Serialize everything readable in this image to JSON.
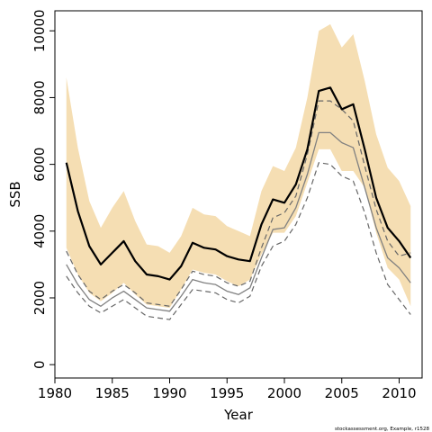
{
  "chart_data": {
    "type": "line",
    "xlabel": "Year",
    "ylabel": "SSB",
    "xlim": [
      1980,
      2012
    ],
    "ylim": [
      -400,
      10600
    ],
    "x_ticks": [
      1980,
      1985,
      1990,
      1995,
      2000,
      2005,
      2010
    ],
    "y_ticks": [
      0,
      2000,
      4000,
      6000,
      8000,
      10000
    ],
    "grid": false,
    "legend": "none",
    "footnote": "stockassessment.org, Example, r1528",
    "x": [
      1981,
      1982,
      1983,
      1984,
      1985,
      1986,
      1987,
      1988,
      1989,
      1990,
      1991,
      1992,
      1993,
      1994,
      1995,
      1996,
      1997,
      1998,
      1999,
      2000,
      2001,
      2002,
      2003,
      2004,
      2005,
      2006,
      2007,
      2008,
      2009,
      2010,
      2011
    ],
    "series": [
      {
        "style": "shaded-band",
        "color": "#f5deb3",
        "upper": [
          8600,
          6500,
          4900,
          4100,
          4700,
          5200,
          4300,
          3600,
          3550,
          3350,
          3850,
          4700,
          4500,
          4450,
          4150,
          4000,
          3850,
          5200,
          5950,
          5800,
          6500,
          8000,
          10000,
          10200,
          9500,
          9900,
          8500,
          6900,
          5900,
          5500,
          4750
        ],
        "lower": [
          3500,
          2700,
          2150,
          1900,
          2150,
          2450,
          2100,
          1800,
          1750,
          1700,
          2250,
          2850,
          2750,
          2700,
          2500,
          2350,
          2550,
          3300,
          3950,
          3950,
          4450,
          5450,
          6450,
          6450,
          5800,
          5800,
          5300,
          3950,
          2900,
          2550,
          1750
        ]
      },
      {
        "style": "thick-solid",
        "color": "#000000",
        "values": [
          6050,
          4600,
          3550,
          3000,
          3350,
          3700,
          3100,
          2700,
          2650,
          2550,
          2950,
          3650,
          3500,
          3450,
          3250,
          3150,
          3100,
          4200,
          4950,
          4850,
          5400,
          6450,
          8200,
          8300,
          7650,
          7800,
          6450,
          5000,
          4100,
          3700,
          3200
        ]
      },
      {
        "style": "grey-solid",
        "color": "#808080",
        "values": [
          3000,
          2400,
          1950,
          1750,
          2000,
          2200,
          1950,
          1700,
          1650,
          1600,
          2050,
          2550,
          2450,
          2400,
          2200,
          2100,
          2300,
          3200,
          4050,
          4100,
          4700,
          5700,
          6950,
          6950,
          6650,
          6500,
          5300,
          4100,
          3200,
          2900,
          2450
        ]
      },
      {
        "style": "dashed-upper",
        "color": "#666666",
        "values": [
          3400,
          2700,
          2200,
          1950,
          2200,
          2400,
          2150,
          1850,
          1800,
          1750,
          2250,
          2800,
          2700,
          2650,
          2450,
          2350,
          2500,
          3500,
          4400,
          4550,
          5050,
          6300,
          7900,
          7900,
          7650,
          7300,
          5950,
          4650,
          3700,
          3250,
          3350
        ]
      },
      {
        "style": "dashed-lower",
        "color": "#666666",
        "values": [
          2650,
          2150,
          1750,
          1550,
          1750,
          1950,
          1700,
          1450,
          1400,
          1350,
          1800,
          2250,
          2200,
          2150,
          1950,
          1850,
          2050,
          2950,
          3550,
          3700,
          4200,
          5000,
          6050,
          6000,
          5650,
          5500,
          4550,
          3350,
          2400,
          1950,
          1500
        ]
      }
    ]
  }
}
